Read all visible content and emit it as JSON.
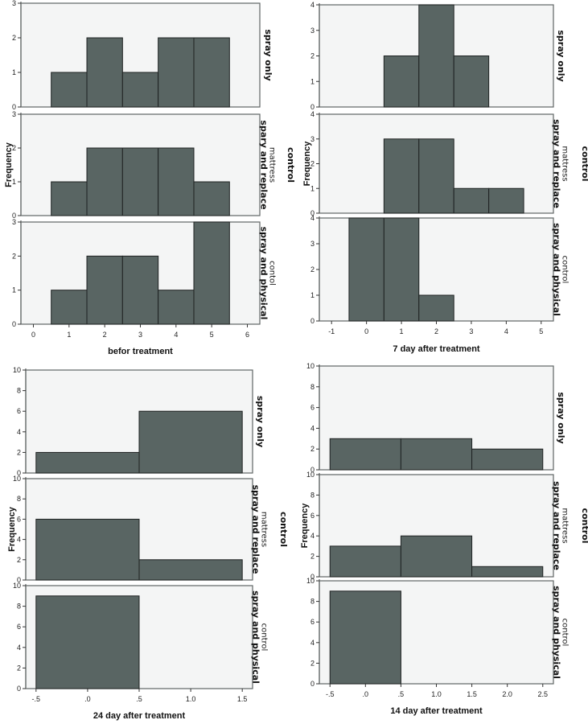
{
  "chart_data": [
    {
      "type": "bar",
      "subtype": "histogram-panel",
      "xlabel": "befor treatment",
      "ylabel": "Frequency",
      "xlim": [
        -0.35,
        6.35
      ],
      "xticks": [
        0,
        1,
        2,
        3,
        4,
        5,
        6
      ],
      "xtick_labels": [
        "0",
        "1",
        "2",
        "3",
        "4",
        "5",
        "6"
      ],
      "ylim": [
        0,
        3
      ],
      "yticks": [
        0,
        1,
        2,
        3
      ],
      "ytick_labels": [
        "0",
        "1",
        "2",
        "3"
      ],
      "bin_width": 1,
      "panels": [
        {
          "row_label": [
            "spray only"
          ],
          "bins": [
            {
              "x": 1,
              "count": 1
            },
            {
              "x": 2,
              "count": 2
            },
            {
              "x": 3,
              "count": 1
            },
            {
              "x": 4,
              "count": 2
            },
            {
              "x": 5,
              "count": 2
            }
          ]
        },
        {
          "row_label": [
            "spary and replace",
            "mattress"
          ],
          "bins": [
            {
              "x": 1,
              "count": 1
            },
            {
              "x": 2,
              "count": 2
            },
            {
              "x": 3,
              "count": 2
            },
            {
              "x": 4,
              "count": 2
            },
            {
              "x": 5,
              "count": 1
            }
          ]
        },
        {
          "row_label": [
            "spray and physical",
            "contol"
          ],
          "bins": [
            {
              "x": 1,
              "count": 1
            },
            {
              "x": 2,
              "count": 2
            },
            {
              "x": 3,
              "count": 2
            },
            {
              "x": 4,
              "count": 1
            },
            {
              "x": 5,
              "count": 3
            }
          ]
        }
      ],
      "group_label": "control"
    },
    {
      "type": "bar",
      "subtype": "histogram-panel",
      "xlabel": "7 day after treatment",
      "ylabel": "Frequency",
      "xlim": [
        -1.35,
        5.35
      ],
      "xticks": [
        -1,
        0,
        1,
        2,
        3,
        4,
        5
      ],
      "xtick_labels": [
        "-1",
        "0",
        "1",
        "2",
        "3",
        "4",
        "5"
      ],
      "ylim": [
        0,
        4
      ],
      "yticks": [
        0,
        1,
        2,
        3,
        4
      ],
      "ytick_labels": [
        "0",
        "1",
        "2",
        "3",
        "4"
      ],
      "bin_width": 1,
      "panels": [
        {
          "row_label": [
            "spray only"
          ],
          "bins": [
            {
              "x": 1,
              "count": 2
            },
            {
              "x": 2,
              "count": 4
            },
            {
              "x": 3,
              "count": 2
            }
          ]
        },
        {
          "row_label": [
            "spray and replace",
            "mattress"
          ],
          "bins": [
            {
              "x": 1,
              "count": 3
            },
            {
              "x": 2,
              "count": 3
            },
            {
              "x": 3,
              "count": 1
            },
            {
              "x": 4,
              "count": 1
            }
          ]
        },
        {
          "row_label": [
            "spray and physical",
            "control"
          ],
          "bins": [
            {
              "x": 0,
              "count": 4
            },
            {
              "x": 1,
              "count": 4
            },
            {
              "x": 2,
              "count": 1
            }
          ]
        }
      ],
      "group_label": "control"
    },
    {
      "type": "bar",
      "subtype": "histogram-panel",
      "xlabel": "24 day after treatment",
      "ylabel": "Frequency",
      "xlim": [
        -0.6,
        1.6
      ],
      "xticks": [
        -0.5,
        0,
        0.5,
        1.0,
        1.5
      ],
      "xtick_labels": [
        "-.5",
        ".0",
        ".5",
        "1.0",
        "1.5"
      ],
      "ylim": [
        0,
        10
      ],
      "yticks": [
        0,
        2,
        4,
        6,
        8,
        10
      ],
      "ytick_labels": [
        "0",
        "2",
        "4",
        "6",
        "8",
        "10"
      ],
      "bin_width": 1,
      "panels": [
        {
          "row_label": [
            "spray only"
          ],
          "bins": [
            {
              "x": 0,
              "count": 2
            },
            {
              "x": 1,
              "count": 6
            }
          ]
        },
        {
          "row_label": [
            "spray and replace",
            "mattress"
          ],
          "bins": [
            {
              "x": 0,
              "count": 6
            },
            {
              "x": 1,
              "count": 2
            }
          ]
        },
        {
          "row_label": [
            "spray and physical",
            "control"
          ],
          "bins": [
            {
              "x": 0,
              "count": 9
            }
          ]
        }
      ],
      "group_label": "control"
    },
    {
      "type": "bar",
      "subtype": "histogram-panel",
      "xlabel": "14 day after treatment",
      "ylabel": "Frequency",
      "xlim": [
        -0.65,
        2.65
      ],
      "xticks": [
        -0.5,
        0,
        0.5,
        1.0,
        1.5,
        2.0,
        2.5
      ],
      "xtick_labels": [
        "-.5",
        ".0",
        ".5",
        "1.0",
        "1.5",
        "2.0",
        "2.5"
      ],
      "ylim": [
        0,
        10
      ],
      "yticks": [
        0,
        2,
        4,
        6,
        8,
        10
      ],
      "ytick_labels": [
        "0",
        "2",
        "4",
        "6",
        "8",
        "10"
      ],
      "bin_width": 1,
      "panels": [
        {
          "row_label": [
            "spray only"
          ],
          "bins": [
            {
              "x": 0,
              "count": 3
            },
            {
              "x": 1,
              "count": 3
            },
            {
              "x": 2,
              "count": 2
            }
          ]
        },
        {
          "row_label": [
            "spray and replace",
            "mattress"
          ],
          "bins": [
            {
              "x": 0,
              "count": 3
            },
            {
              "x": 1,
              "count": 4
            },
            {
              "x": 2,
              "count": 1
            }
          ]
        },
        {
          "row_label": [
            "spray and physical",
            "control"
          ],
          "bins": [
            {
              "x": 0,
              "count": 9
            }
          ]
        }
      ],
      "group_label": "control"
    }
  ],
  "colors": {
    "bar_fill": "#596563",
    "bar_stroke": "#1e2222",
    "panel_bg": "#f4f5f5",
    "panel_border": "#5f6564",
    "text": "#111111"
  }
}
